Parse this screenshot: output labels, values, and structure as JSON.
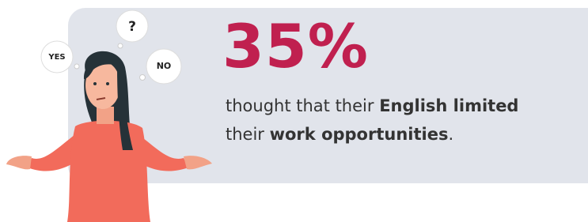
{
  "stat": "35%",
  "bubbles": [
    "YES",
    "?",
    "NO"
  ],
  "text": [
    "thought that their ",
    "English limited",
    "their ",
    "work opportunities",
    "."
  ]
}
